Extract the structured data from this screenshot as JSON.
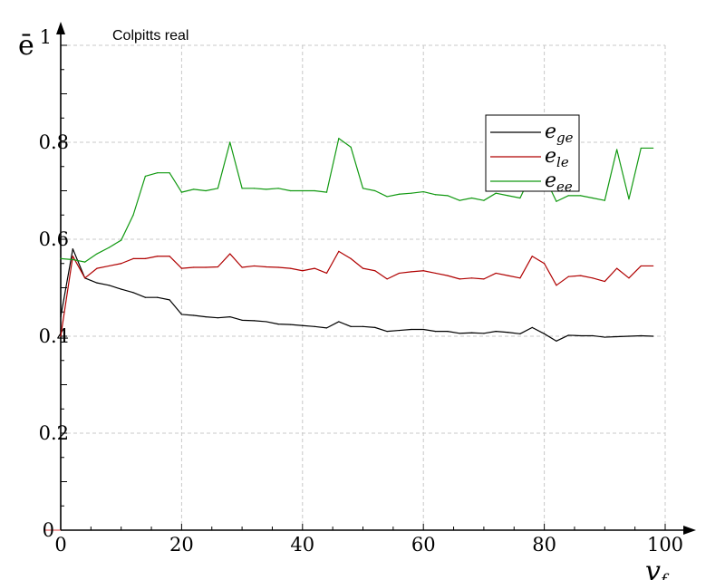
{
  "chart_data": {
    "type": "line",
    "title": "Colpitts real",
    "xlabel": "v",
    "xlabel_subscript": "f",
    "ylabel": "ē",
    "xlim": [
      0,
      100
    ],
    "ylim": [
      0,
      1
    ],
    "y_top_tick_label": "1",
    "xticks": [
      0,
      20,
      40,
      60,
      80,
      100
    ],
    "yticks": [
      0,
      0.2,
      0.4,
      0.6,
      0.8
    ],
    "grid": true,
    "legend_position": "upper-right",
    "x": [
      0,
      2,
      4,
      6,
      8,
      10,
      12,
      14,
      16,
      18,
      20,
      22,
      24,
      26,
      28,
      30,
      32,
      34,
      36,
      38,
      40,
      42,
      44,
      46,
      48,
      50,
      52,
      54,
      56,
      58,
      60,
      62,
      64,
      66,
      68,
      70,
      72,
      74,
      76,
      78,
      80,
      82,
      84,
      86,
      88,
      90,
      92,
      94,
      96,
      98
    ],
    "series": [
      {
        "name": "e",
        "subscript": "ge",
        "color": "#000000",
        "values": [
          0.44,
          0.58,
          0.52,
          0.51,
          0.505,
          0.497,
          0.49,
          0.48,
          0.48,
          0.475,
          0.445,
          0.443,
          0.44,
          0.438,
          0.44,
          0.433,
          0.432,
          0.43,
          0.425,
          0.424,
          0.422,
          0.42,
          0.417,
          0.43,
          0.42,
          0.42,
          0.418,
          0.41,
          0.412,
          0.414,
          0.414,
          0.41,
          0.41,
          0.406,
          0.407,
          0.406,
          0.41,
          0.408,
          0.405,
          0.418,
          0.405,
          0.39,
          0.402,
          0.401,
          0.401,
          0.398,
          0.399,
          0.4,
          0.401,
          0.4
        ]
      },
      {
        "name": "e",
        "subscript": "le",
        "color": "#b00000",
        "values": [
          0.4,
          0.565,
          0.52,
          0.54,
          0.545,
          0.55,
          0.56,
          0.56,
          0.565,
          0.565,
          0.54,
          0.542,
          0.542,
          0.543,
          0.57,
          0.542,
          0.545,
          0.543,
          0.542,
          0.54,
          0.535,
          0.54,
          0.53,
          0.575,
          0.56,
          0.54,
          0.535,
          0.518,
          0.53,
          0.533,
          0.535,
          0.53,
          0.525,
          0.518,
          0.52,
          0.518,
          0.53,
          0.525,
          0.52,
          0.565,
          0.55,
          0.505,
          0.523,
          0.525,
          0.52,
          0.513,
          0.54,
          0.52,
          0.545,
          0.545
        ]
      },
      {
        "name": "e",
        "subscript": "ee",
        "color": "#119911",
        "values": [
          0.56,
          0.558,
          0.553,
          0.57,
          0.583,
          0.598,
          0.65,
          0.73,
          0.737,
          0.737,
          0.697,
          0.703,
          0.7,
          0.705,
          0.8,
          0.705,
          0.705,
          0.703,
          0.705,
          0.7,
          0.7,
          0.7,
          0.697,
          0.808,
          0.79,
          0.705,
          0.7,
          0.688,
          0.693,
          0.695,
          0.698,
          0.692,
          0.69,
          0.68,
          0.685,
          0.68,
          0.695,
          0.69,
          0.685,
          0.738,
          0.73,
          0.678,
          0.69,
          0.69,
          0.685,
          0.68,
          0.785,
          0.683,
          0.788,
          0.788
        ]
      }
    ]
  }
}
